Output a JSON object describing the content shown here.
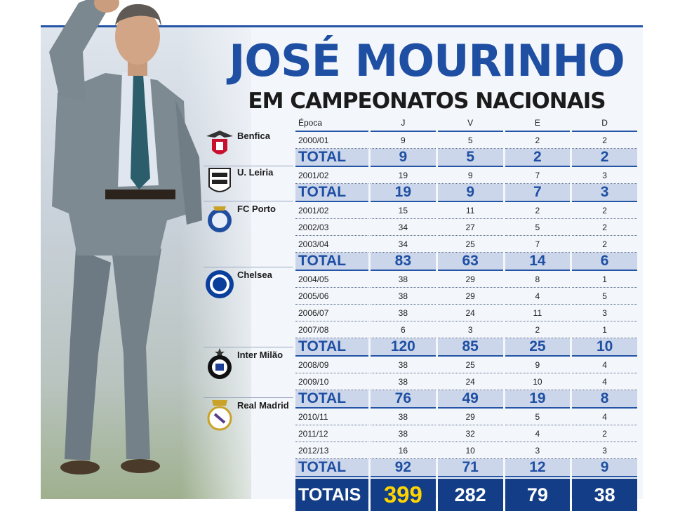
{
  "header": {
    "title": "JOSÉ MOURINHO",
    "subtitle": "EM CAMPEONATOS NACIONAIS"
  },
  "columns": {
    "epoca": "Época",
    "j": "J",
    "v": "V",
    "e": "E",
    "d": "D"
  },
  "clubs": [
    {
      "name": "Benfica",
      "crest_icon": "benfica-crest-icon",
      "seasons": [
        {
          "epoca": "2000/01",
          "j": "9",
          "v": "5",
          "e": "2",
          "d": "2"
        }
      ],
      "total": {
        "label": "TOTAL",
        "j": "9",
        "v": "5",
        "e": "2",
        "d": "2"
      }
    },
    {
      "name": "U. Leiria",
      "crest_icon": "uniao-leiria-crest-icon",
      "seasons": [
        {
          "epoca": "2001/02",
          "j": "19",
          "v": "9",
          "e": "7",
          "d": "3"
        }
      ],
      "total": {
        "label": "TOTAL",
        "j": "19",
        "v": "9",
        "e": "7",
        "d": "3"
      }
    },
    {
      "name": "FC Porto",
      "crest_icon": "fc-porto-crest-icon",
      "seasons": [
        {
          "epoca": "2001/02",
          "j": "15",
          "v": "11",
          "e": "2",
          "d": "2"
        },
        {
          "epoca": "2002/03",
          "j": "34",
          "v": "27",
          "e": "5",
          "d": "2"
        },
        {
          "epoca": "2003/04",
          "j": "34",
          "v": "25",
          "e": "7",
          "d": "2"
        }
      ],
      "total": {
        "label": "TOTAL",
        "j": "83",
        "v": "63",
        "e": "14",
        "d": "6"
      }
    },
    {
      "name": "Chelsea",
      "crest_icon": "chelsea-crest-icon",
      "seasons": [
        {
          "epoca": "2004/05",
          "j": "38",
          "v": "29",
          "e": "8",
          "d": "1"
        },
        {
          "epoca": "2005/06",
          "j": "38",
          "v": "29",
          "e": "4",
          "d": "5"
        },
        {
          "epoca": "2006/07",
          "j": "38",
          "v": "24",
          "e": "11",
          "d": "3"
        },
        {
          "epoca": "2007/08",
          "j": "6",
          "v": "3",
          "e": "2",
          "d": "1"
        }
      ],
      "total": {
        "label": "TOTAL",
        "j": "120",
        "v": "85",
        "e": "25",
        "d": "10"
      }
    },
    {
      "name": "Inter Milão",
      "crest_icon": "inter-milan-crest-icon",
      "seasons": [
        {
          "epoca": "2008/09",
          "j": "38",
          "v": "25",
          "e": "9",
          "d": "4"
        },
        {
          "epoca": "2009/10",
          "j": "38",
          "v": "24",
          "e": "10",
          "d": "4"
        }
      ],
      "total": {
        "label": "TOTAL",
        "j": "76",
        "v": "49",
        "e": "19",
        "d": "8"
      }
    },
    {
      "name": "Real Madrid",
      "crest_icon": "real-madrid-crest-icon",
      "seasons": [
        {
          "epoca": "2010/11",
          "j": "38",
          "v": "29",
          "e": "5",
          "d": "4"
        },
        {
          "epoca": "2011/12",
          "j": "38",
          "v": "32",
          "e": "4",
          "d": "2"
        },
        {
          "epoca": "2012/13",
          "j": "16",
          "v": "10",
          "e": "3",
          "d": "3"
        }
      ],
      "total": {
        "label": "TOTAL",
        "j": "92",
        "v": "71",
        "e": "12",
        "d": "9"
      }
    }
  ],
  "grand_total": {
    "label": "TOTAIS",
    "j": "399",
    "v": "282",
    "e": "79",
    "d": "38"
  },
  "colors": {
    "title_blue": "#1e4fa3",
    "total_row_bg": "#ccd6ea",
    "grand_total_bg": "#133e87",
    "highlight_yellow": "#ffd400"
  }
}
